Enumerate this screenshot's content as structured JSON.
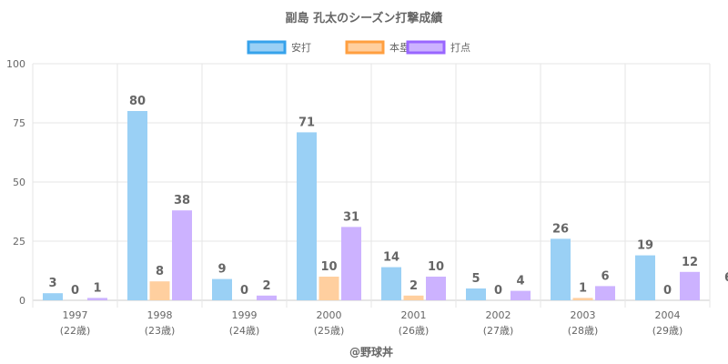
{
  "chart_data": {
    "type": "bar",
    "title": "副島 孔太のシーズン打撃成績",
    "categories": [
      "1997",
      "1998",
      "1999",
      "2000",
      "2001",
      "2002",
      "2003",
      "2004"
    ],
    "sublabels": [
      "(22歳)",
      "(23歳)",
      "(24歳)",
      "(25歳)",
      "(26歳)",
      "(27歳)",
      "(28歳)",
      "(29歳)"
    ],
    "series": [
      {
        "name": "安打",
        "values": [
          3,
          80,
          9,
          71,
          14,
          5,
          26,
          19
        ],
        "color": "#9ad0f5",
        "border": "#36a2eb"
      },
      {
        "name": "本塁打",
        "values": [
          0,
          8,
          0,
          10,
          2,
          0,
          1,
          0
        ],
        "color": "#ffcf9f",
        "border": "#ff9f40"
      },
      {
        "name": "打点",
        "values": [
          1,
          38,
          2,
          31,
          10,
          4,
          6,
          12
        ],
        "color": "#ccb2ff",
        "border": "#9966ff"
      }
    ],
    "ylim": [
      0,
      100
    ],
    "yticks": [
      0,
      25,
      50,
      75,
      100
    ],
    "grid": true,
    "legend": "top",
    "clipped_label": "6",
    "credit": "@野球丼"
  }
}
